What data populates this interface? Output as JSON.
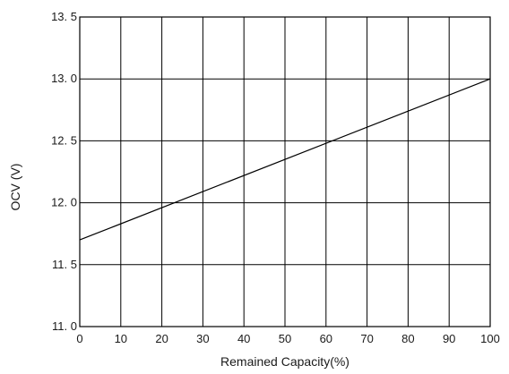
{
  "chart_data": {
    "type": "line",
    "title": "",
    "xlabel": "Remained Capacity(%)",
    "ylabel": "OCV (V)",
    "xlim": [
      0,
      100
    ],
    "ylim": [
      11.0,
      13.5
    ],
    "grid": true,
    "x_ticks": [
      0,
      10,
      20,
      30,
      40,
      50,
      60,
      70,
      80,
      90,
      100
    ],
    "x_tick_labels": [
      "0",
      "10",
      "20",
      "30",
      "40",
      "50",
      "60",
      "70",
      "80",
      "90",
      "100"
    ],
    "y_ticks": [
      11.0,
      11.5,
      12.0,
      12.5,
      13.0,
      13.5
    ],
    "y_tick_labels": [
      "11. 0",
      "11. 5",
      "12. 0",
      "12. 5",
      "13. 0",
      "13. 5"
    ],
    "series": [
      {
        "x": [
          0,
          100
        ],
        "y": [
          11.7,
          13.0
        ]
      }
    ],
    "colors": {
      "line": "#000000",
      "grid": "#000000",
      "text": "#1a1a1a"
    }
  }
}
